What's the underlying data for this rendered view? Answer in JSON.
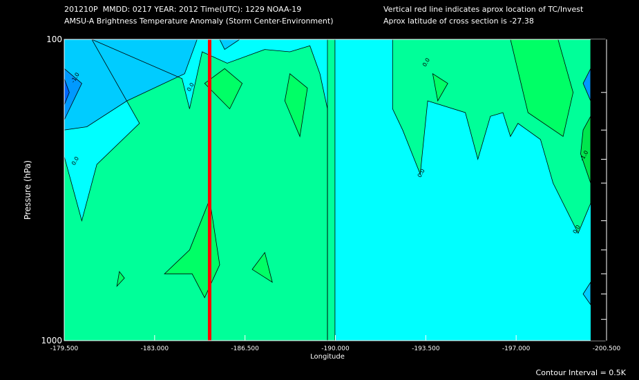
{
  "header": {
    "line1_left": "201210P  MMDD: 0217 YEAR: 2012 Time(UTC): 1229 NOAA-19",
    "line2_left": "AMSU-A Brightness Temperature Anomaly (Storm Center-Environment)",
    "line1_right": "Vertical red line indicates aprox location of TC/Invest",
    "line2_right": "Aprox latitude of cross section is -27.38"
  },
  "footer": {
    "contour_interval": "Contour Interval = 0.5K"
  },
  "colors": {
    "background": "#000000",
    "plot_bg": "#00ffff",
    "level_pos_0_5": "#00ff99",
    "level_pos_1_0": "#00ff66",
    "level_pos_1_5": "#00e64d",
    "level_neg_0_5": "#00ccff",
    "level_neg_1_0": "#0099ff",
    "level_neg_1_5": "#0066ff",
    "storm_line": "#ff0000",
    "contour": "#000000"
  },
  "chart_data": {
    "type": "heatmap",
    "title": "AMSU-A Brightness Temperature Anomaly (Storm Center-Environment)",
    "xlabel": "Longitude",
    "ylabel": "Pressure (hPa)",
    "xlim": [
      -179.5,
      -200.5
    ],
    "ylim": [
      1000,
      100
    ],
    "y_scale": "log",
    "x_ticks": [
      -179.5,
      -183.0,
      -186.5,
      -190.0,
      -193.5,
      -197.0,
      -200.5
    ],
    "x_tick_labels": [
      "-179.500",
      "-183.000",
      "-186.500",
      "-190.000",
      "-193.500",
      "-197.000",
      "-200.500"
    ],
    "y_tick_labels": [
      "100",
      "1000"
    ],
    "y_major_ticks": [
      100,
      1000
    ],
    "y_minor_ticks": [
      150,
      200,
      250,
      300,
      400,
      500,
      600,
      700,
      850
    ],
    "storm_longitude": -185.3,
    "contour_interval_K": 0.5,
    "contour_labels": [
      {
        "text": "-1.0",
        "lon": -180.0,
        "p": 135
      },
      {
        "text": "0.0",
        "lon": -184.6,
        "p": 145
      },
      {
        "text": "0.0",
        "lon": -180.0,
        "p": 255
      },
      {
        "text": "0.0",
        "lon": -194.0,
        "p": 120
      },
      {
        "text": "0.0",
        "lon": -193.8,
        "p": 280
      },
      {
        "text": "-1.0",
        "lon": -200.3,
        "p": 245
      },
      {
        "text": "0.0",
        "lon": -200.0,
        "p": 430
      }
    ],
    "regions": [
      {
        "level": "0.5",
        "polygon": [
          [
            -180.6,
            100
          ],
          [
            -184.2,
            135
          ],
          [
            -184.5,
            170
          ],
          [
            -185.0,
            110
          ],
          [
            -186.0,
            120
          ],
          [
            -187.5,
            108
          ],
          [
            -188.5,
            110
          ],
          [
            -189.3,
            105
          ],
          [
            -189.7,
            130
          ],
          [
            -190.0,
            170
          ],
          [
            -190.0,
            1000
          ],
          [
            -179.5,
            1000
          ],
          [
            -179.5,
            245
          ],
          [
            -180.2,
            400
          ],
          [
            -180.8,
            260
          ],
          [
            -182.5,
            190
          ]
        ]
      },
      {
        "level": "0.5",
        "polygon": [
          [
            -190.3,
            100
          ],
          [
            -190.3,
            1000
          ],
          [
            -190.0,
            1000
          ],
          [
            -190.0,
            100
          ]
        ]
      },
      {
        "level": "0.5",
        "polygon": [
          [
            -191.0,
            100
          ],
          [
            -192.6,
            100
          ],
          [
            -192.6,
            170
          ],
          [
            -193.0,
            200
          ],
          [
            -193.7,
            280
          ],
          [
            -194.0,
            160
          ],
          [
            -195.5,
            175
          ],
          [
            -196.0,
            250
          ],
          [
            -196.5,
            180
          ],
          [
            -197.0,
            175
          ],
          [
            -197.3,
            210
          ],
          [
            -197.6,
            190
          ],
          [
            -198.5,
            215
          ],
          [
            -199.0,
            300
          ],
          [
            -200.0,
            440
          ],
          [
            -200.5,
            350
          ],
          [
            -200.5,
            100
          ]
        ]
      },
      {
        "level": "1.0",
        "polygon": [
          [
            -185.1,
            140
          ],
          [
            -185.9,
            125
          ],
          [
            -186.6,
            140
          ],
          [
            -186.1,
            170
          ]
        ]
      },
      {
        "level": "1.0",
        "polygon": [
          [
            -188.5,
            130
          ],
          [
            -189.2,
            145
          ],
          [
            -188.9,
            210
          ],
          [
            -188.3,
            160
          ]
        ]
      },
      {
        "level": "1.0",
        "polygon": [
          [
            -194.2,
            130
          ],
          [
            -194.8,
            140
          ],
          [
            -194.4,
            160
          ]
        ]
      },
      {
        "level": "1.0",
        "polygon": [
          [
            -184.5,
            500
          ],
          [
            -185.3,
            340
          ],
          [
            -185.7,
            560
          ],
          [
            -185.1,
            720
          ],
          [
            -184.6,
            600
          ],
          [
            -183.5,
            600
          ]
        ]
      },
      {
        "level": "1.0",
        "polygon": [
          [
            -187.0,
            580
          ],
          [
            -187.5,
            510
          ],
          [
            -187.8,
            640
          ]
        ]
      },
      {
        "level": "1.0",
        "polygon": [
          [
            -181.7,
            590
          ],
          [
            -181.9,
            620
          ],
          [
            -181.6,
            660
          ]
        ]
      },
      {
        "level": "1.0",
        "polygon": [
          [
            -197.3,
            100
          ],
          [
            -199.2,
            100
          ],
          [
            -199.8,
            150
          ],
          [
            -199.4,
            210
          ],
          [
            -198.0,
            175
          ]
        ]
      },
      {
        "level": "1.5",
        "polygon": [
          [
            -200.2,
            200
          ],
          [
            -200.5,
            180
          ],
          [
            -200.5,
            300
          ],
          [
            -200.1,
            240
          ]
        ]
      },
      {
        "level": "-0.5",
        "polygon": [
          [
            -179.5,
            100
          ],
          [
            -184.8,
            100
          ],
          [
            -184.3,
            130
          ],
          [
            -182.0,
            160
          ],
          [
            -180.4,
            195
          ],
          [
            -179.5,
            200
          ]
        ]
      },
      {
        "level": "-0.5",
        "polygon": [
          [
            -185.7,
            100
          ],
          [
            -186.5,
            100
          ],
          [
            -185.9,
            108
          ]
        ]
      },
      {
        "level": "-0.5",
        "polygon": [
          [
            -200.5,
            640
          ],
          [
            -200.2,
            700
          ],
          [
            -200.5,
            760
          ]
        ]
      },
      {
        "level": "-1.0",
        "polygon": [
          [
            -179.5,
            125
          ],
          [
            -180.2,
            140
          ],
          [
            -179.5,
            185
          ]
        ]
      },
      {
        "level": "-1.0",
        "polygon": [
          [
            -200.5,
            125
          ],
          [
            -200.2,
            140
          ],
          [
            -200.5,
            160
          ]
        ]
      },
      {
        "level": "-1.5",
        "polygon": [
          [
            -179.5,
            135
          ],
          [
            -179.7,
            150
          ],
          [
            -179.5,
            165
          ]
        ]
      }
    ]
  }
}
